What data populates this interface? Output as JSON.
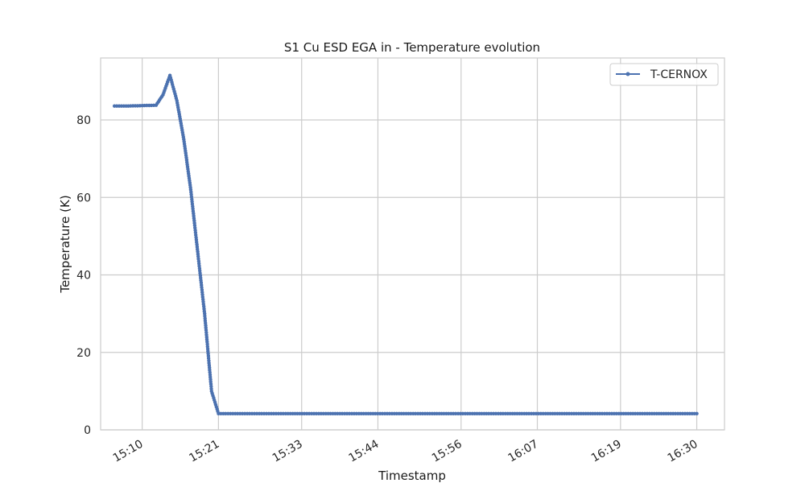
{
  "chart_data": {
    "type": "line",
    "title": "S1 Cu ESD EGA in - Temperature evolution",
    "xlabel": "Timestamp",
    "ylabel": "Temperature (K)",
    "x_time_ticks": [
      "15:10",
      "15:21",
      "15:33",
      "15:44",
      "15:56",
      "16:07",
      "16:19",
      "16:30"
    ],
    "y_ticks": [
      0,
      20,
      40,
      60,
      80
    ],
    "ylim": [
      0,
      96
    ],
    "xlim": [
      "15:04",
      "16:34"
    ],
    "grid": true,
    "legend_position": "top-right",
    "series": [
      {
        "name": "T-CERNOX",
        "color": "#4c72b0",
        "marker": "circle",
        "x": [
          "15:06",
          "15:08",
          "15:10",
          "15:12",
          "15:13",
          "15:14",
          "15:15",
          "15:16",
          "15:17",
          "15:18",
          "15:19",
          "15:20",
          "15:21",
          "15:30",
          "15:45",
          "16:00",
          "16:15",
          "16:30"
        ],
        "y": [
          83.6,
          83.6,
          83.7,
          83.8,
          86.5,
          91.5,
          85,
          75,
          62,
          46,
          30,
          10,
          4.2,
          4.2,
          4.2,
          4.2,
          4.2,
          4.2
        ]
      }
    ]
  }
}
